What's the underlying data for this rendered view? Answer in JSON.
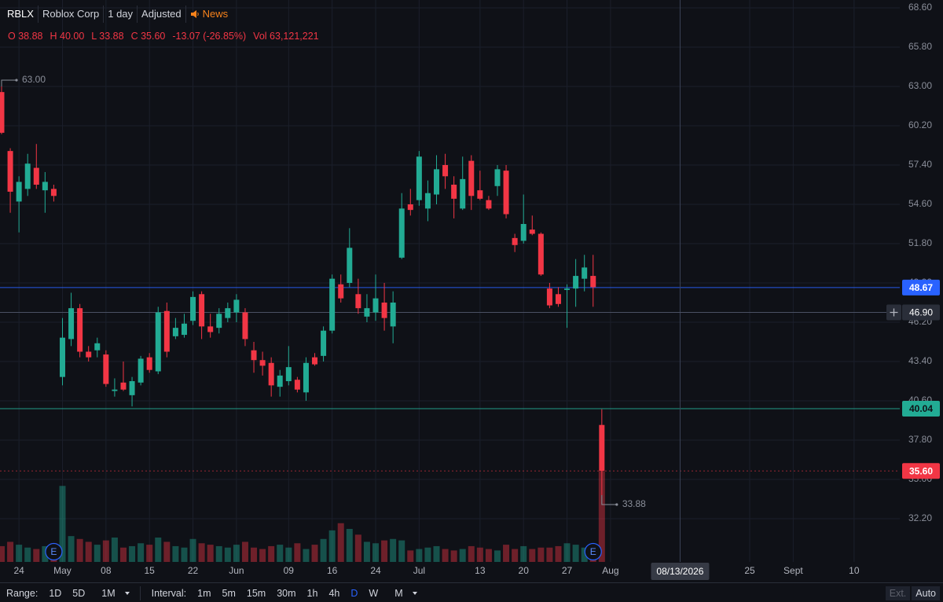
{
  "header": {
    "symbol": "RBLX",
    "name": "Roblox Corp",
    "interval": "1 day",
    "adjustment": "Adjusted",
    "news": "News",
    "ohlc": [
      {
        "key": "O",
        "value": "38.88"
      },
      {
        "key": "H",
        "value": "40.00"
      },
      {
        "key": "L",
        "value": "33.88"
      },
      {
        "key": "C",
        "value": "35.60"
      }
    ],
    "change": "-13.07 (-26.85%)",
    "volume_key": "Vol",
    "volume": "63,121,221"
  },
  "chart_data": {
    "type": "candlestick",
    "categories": [
      null,
      null,
      "24",
      null,
      null,
      null,
      null,
      "May",
      null,
      null,
      null,
      null,
      "08",
      null,
      null,
      null,
      null,
      "15",
      null,
      null,
      null,
      null,
      "22",
      null,
      null,
      null,
      null,
      "Jun",
      null,
      null,
      null,
      null,
      null,
      "09",
      null,
      null,
      null,
      null,
      "16",
      null,
      null,
      null,
      null,
      "24",
      null,
      null,
      null,
      null,
      "Jul",
      null,
      null,
      null,
      null,
      null,
      null,
      "13",
      null,
      null,
      null,
      null,
      "20",
      null,
      null,
      null,
      null,
      "27",
      null,
      null,
      null,
      null,
      "Aug",
      null,
      null,
      null,
      null,
      null,
      null,
      null,
      null,
      null,
      null,
      null,
      null,
      null,
      null,
      null,
      "25",
      null,
      null,
      null,
      null,
      "Sept",
      null,
      null,
      null,
      null,
      null,
      null,
      "10"
    ],
    "open": [
      62.6,
      58.4,
      54.8,
      55.7,
      57.2,
      55.6,
      55.7,
      42.3,
      45.0,
      47.2,
      44.1,
      44.2,
      43.9,
      41.3,
      41.9,
      41.0,
      41.9,
      43.7,
      42.7,
      47.0,
      45.2,
      45.3,
      46.3,
      48.2,
      45.9,
      45.8,
      46.5,
      46.9,
      46.9,
      44.2,
      43.5,
      43.3,
      41.6,
      42.0,
      42.1,
      41.2,
      43.7,
      43.8,
      45.6,
      48.9,
      49.0,
      48.2,
      46.6,
      46.9,
      47.6,
      45.9,
      50.8,
      54.6,
      54.9,
      54.3,
      55.3,
      57.4,
      56.0,
      54.3,
      57.7,
      55.6,
      54.9,
      55.9,
      57.0,
      52.2,
      52.0,
      52.8,
      52.5,
      48.6,
      48.2,
      48.5,
      48.6,
      49.3,
      49.5,
      38.88,
      null,
      null,
      null,
      null,
      null,
      null,
      null,
      null,
      null,
      null,
      null,
      null,
      null,
      null,
      null,
      null,
      null,
      null,
      null,
      null,
      null,
      null,
      null,
      null,
      null,
      null,
      null,
      null,
      null
    ],
    "high": [
      63.0,
      58.6,
      56.6,
      58.2,
      58.9,
      56.9,
      56.0,
      46.5,
      48.3,
      47.5,
      44.5,
      45.1,
      44.2,
      42.2,
      43.4,
      42.3,
      43.8,
      44.0,
      47.3,
      47.6,
      46.5,
      46.8,
      48.4,
      48.4,
      46.8,
      47.2,
      47.6,
      48.2,
      47.2,
      44.8,
      44.1,
      43.7,
      42.8,
      44.5,
      42.3,
      43.7,
      44.0,
      45.9,
      49.6,
      49.6,
      52.9,
      49.3,
      48.2,
      49.6,
      49.0,
      48.4,
      55.4,
      55.7,
      58.4,
      56.3,
      58.1,
      58.2,
      56.6,
      58.0,
      58.1,
      57.0,
      55.2,
      57.4,
      57.4,
      52.5,
      55.3,
      53.8,
      52.6,
      49.0,
      48.7,
      48.9,
      50.7,
      51.0,
      51.0,
      40.0,
      null,
      null,
      null,
      null,
      null,
      null,
      null,
      null,
      null,
      null,
      null,
      null,
      null,
      null,
      null,
      null,
      null,
      null,
      null,
      null,
      null,
      null,
      null,
      null,
      null,
      null,
      null,
      null,
      null
    ],
    "low": [
      59.6,
      54.0,
      52.6,
      55.2,
      55.7,
      54.0,
      54.8,
      41.7,
      44.5,
      43.7,
      43.4,
      43.7,
      41.6,
      40.9,
      41.3,
      40.2,
      41.7,
      42.6,
      42.5,
      43.7,
      45.0,
      45.1,
      46.0,
      45.0,
      45.1,
      45.4,
      46.2,
      46.2,
      44.5,
      42.6,
      42.4,
      40.9,
      40.9,
      41.7,
      41.2,
      40.6,
      43.1,
      43.4,
      45.4,
      47.6,
      48.7,
      46.8,
      46.2,
      46.3,
      45.6,
      44.7,
      50.7,
      53.8,
      54.5,
      53.4,
      54.6,
      55.7,
      53.6,
      54.2,
      54.2,
      54.9,
      54.2,
      55.2,
      53.6,
      51.2,
      51.8,
      52.4,
      49.5,
      47.2,
      47.3,
      45.8,
      47.3,
      48.4,
      47.3,
      33.88,
      null,
      null,
      null,
      null,
      null,
      null,
      null,
      null,
      null,
      null,
      null,
      null,
      null,
      null,
      null,
      null,
      null,
      null,
      null,
      null,
      null,
      null,
      null,
      null,
      null,
      null,
      null,
      null,
      null
    ],
    "close": [
      59.7,
      55.5,
      56.2,
      57.5,
      56.0,
      56.2,
      55.2,
      45.1,
      47.2,
      44.1,
      43.7,
      44.7,
      41.8,
      41.4,
      41.4,
      42.0,
      43.6,
      42.8,
      46.9,
      44.1,
      45.8,
      46.1,
      48.0,
      45.9,
      45.5,
      46.8,
      47.2,
      47.8,
      45.0,
      43.5,
      43.1,
      41.7,
      42.4,
      43.0,
      41.4,
      43.3,
      43.2,
      45.6,
      49.3,
      47.9,
      51.5,
      47.2,
      47.2,
      47.9,
      46.5,
      47.6,
      54.3,
      54.2,
      58.0,
      55.4,
      57.1,
      56.6,
      55.0,
      56.4,
      55.2,
      55.0,
      54.3,
      57.1,
      53.9,
      51.7,
      53.2,
      52.5,
      49.6,
      47.4,
      47.5,
      48.6,
      49.5,
      50.1,
      48.7,
      35.6,
      null,
      null,
      null,
      null,
      null,
      null,
      null,
      null,
      null,
      null,
      null,
      null,
      null,
      null,
      null,
      null,
      null,
      null,
      null,
      null,
      null,
      null,
      null,
      null,
      null,
      null,
      null,
      null,
      null
    ],
    "volume": [
      11000000,
      14000000,
      12000000,
      10000000,
      9000000,
      11000000,
      13000000,
      53000000,
      18000000,
      16000000,
      14000000,
      12000000,
      15000000,
      17000000,
      10000000,
      11000000,
      13000000,
      12000000,
      17000000,
      14000000,
      11000000,
      10000000,
      16000000,
      13000000,
      12000000,
      11000000,
      10000000,
      12000000,
      14000000,
      10000000,
      9000000,
      11000000,
      12000000,
      10000000,
      13000000,
      9000000,
      12000000,
      16000000,
      22000000,
      27000000,
      23000000,
      19000000,
      14000000,
      13000000,
      15000000,
      16000000,
      15000000,
      8000000,
      9000000,
      10000000,
      11000000,
      9000000,
      8000000,
      9000000,
      11000000,
      10000000,
      9000000,
      8000000,
      12000000,
      9000000,
      11000000,
      9000000,
      10000000,
      10000000,
      11000000,
      13000000,
      12000000,
      10000000,
      11000000,
      63121221,
      null,
      null,
      null,
      null,
      null,
      null,
      null,
      null,
      null,
      null,
      null,
      null,
      null,
      null,
      null,
      null,
      null,
      null,
      null,
      null,
      null,
      null,
      null,
      null,
      null,
      null,
      null,
      null,
      null
    ],
    "colors": {
      "up": "#22ab94",
      "down": "#f23645"
    },
    "ylim": [
      29.12,
      69.16
    ],
    "yticks": [
      {
        "value": 68.6,
        "label": "68.60"
      },
      {
        "value": 65.8,
        "label": "65.80"
      },
      {
        "value": 63.0,
        "label": "63.00"
      },
      {
        "value": 60.2,
        "label": "60.20"
      },
      {
        "value": 57.4,
        "label": "57.40"
      },
      {
        "value": 54.6,
        "label": "54.60"
      },
      {
        "value": 51.8,
        "label": "51.80"
      },
      {
        "value": 49.0,
        "label": "49.00"
      },
      {
        "value": 46.2,
        "label": "46.20"
      },
      {
        "value": 43.4,
        "label": "43.40"
      },
      {
        "value": 40.6,
        "label": "40.60"
      },
      {
        "value": 37.8,
        "label": "37.80"
      },
      {
        "value": 35.0,
        "label": "35.00"
      },
      {
        "value": 32.2,
        "label": "32.20"
      }
    ],
    "volume_lim": [
      0,
      120000000
    ],
    "grid": true,
    "price_lines": [
      {
        "value": 48.67,
        "color": "#2962ff",
        "text_color": "#ffffff",
        "style": "solid"
      },
      {
        "value": 40.04,
        "color": "#22ab94",
        "text_color": "#0f1117",
        "style": "solid"
      },
      {
        "value": 35.6,
        "label": "35.60",
        "color": "#f23645",
        "text_color": "#ffffff",
        "style": "dotted"
      }
    ],
    "crosshair": {
      "at": 78,
      "label": "08/13/2026",
      "price": {
        "value": 46.9,
        "label": "46.90"
      }
    },
    "high_marker": {
      "at": 0,
      "value": 63.0,
      "label": "63.00"
    },
    "low_marker": {
      "at": 69,
      "value": 33.88
    },
    "events": [
      {
        "at": 6,
        "label": "E"
      },
      {
        "at": 68,
        "label": "E"
      }
    ]
  },
  "toolbar": {
    "range_label": "Range:",
    "ranges": [
      "1D",
      "5D",
      "1M"
    ],
    "interval_label": "Interval:",
    "intervals": [
      "1m",
      "5m",
      "15m",
      "30m",
      "1h",
      "4h",
      "D",
      "W",
      "M"
    ],
    "active_interval": 6,
    "ext": "Ext.",
    "auto": "Auto"
  }
}
